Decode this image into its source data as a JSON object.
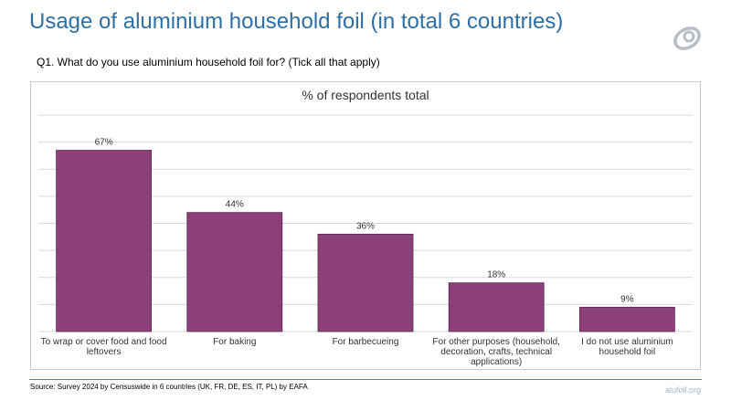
{
  "page": {
    "title": "Usage of aluminium household foil (in total 6 countries)",
    "question": "Q1. What do you use aluminium household foil for? (Tick all that apply)",
    "source": "Source: Survey 2024 by Censuswide in 6 countries (UK, FR, DE, ES, IT, PL) by EAFA",
    "site": "alufoil.org",
    "logo_icon": "ring-swirl-icon"
  },
  "colors": {
    "title": "#2e6fa5",
    "bar": "#8b4079",
    "bar_edge": "#5d2a52",
    "grid": "#d9d9d9",
    "footer_rule": "#4f81bd"
  },
  "chart_data": {
    "type": "bar",
    "title": "% of respondents total",
    "categories": [
      [
        "To wrap or cover food and food",
        "leftovers"
      ],
      [
        "For baking"
      ],
      [
        "For barbecueing"
      ],
      [
        "For other purposes (household,",
        "decoration, crafts, technical",
        "applications)"
      ],
      [
        "I do not use aluminium",
        "household foil"
      ]
    ],
    "values": [
      67,
      44,
      36,
      18,
      9
    ],
    "data_labels": [
      "67%",
      "44%",
      "36%",
      "18%",
      "9%"
    ],
    "ylim": [
      0,
      80
    ],
    "gridline_step": 10,
    "grid": true,
    "legend": "none"
  }
}
